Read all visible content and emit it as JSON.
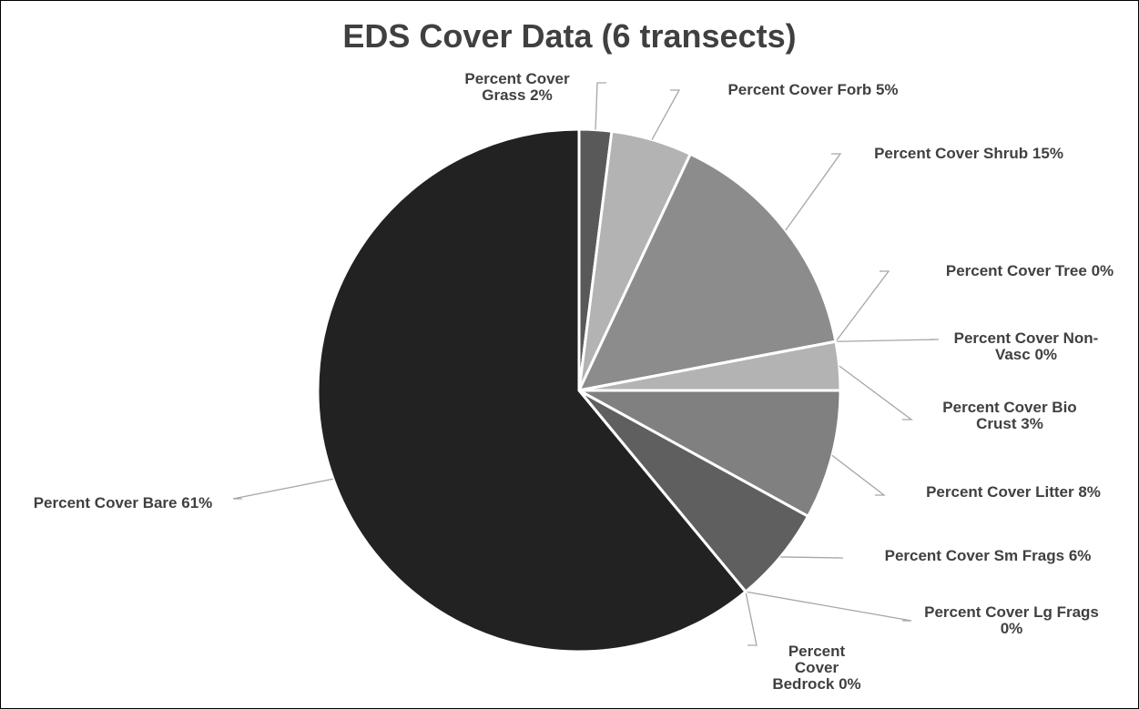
{
  "chart_data": {
    "type": "pie",
    "title": "EDS Cover Data (6 transects)",
    "categories": [
      "Percent Cover Grass",
      "Percent Cover Forb",
      "Percent Cover Shrub",
      "Percent Cover Tree",
      "Percent Cover Non-Vasc",
      "Percent Cover Bio Crust",
      "Percent Cover Litter",
      "Percent Cover Sm Frags",
      "Percent Cover Lg Frags",
      "Percent Cover Bedrock",
      "Percent Cover Bare"
    ],
    "values": [
      2,
      5,
      15,
      0,
      0,
      3,
      8,
      6,
      0,
      0,
      61
    ],
    "value_labels": [
      "2%",
      "5%",
      "15%",
      "0%",
      "0%",
      "3%",
      "8%",
      "6%",
      "0%",
      "0%",
      "61%"
    ],
    "colors": [
      "#595959",
      "#b3b3b3",
      "#8c8c8c",
      "#a6a6a6",
      "#c0c0c0",
      "#b3b3b3",
      "#808080",
      "#5f5f5f",
      "#4a4a4a",
      "#3a3a3a",
      "#222222"
    ]
  }
}
